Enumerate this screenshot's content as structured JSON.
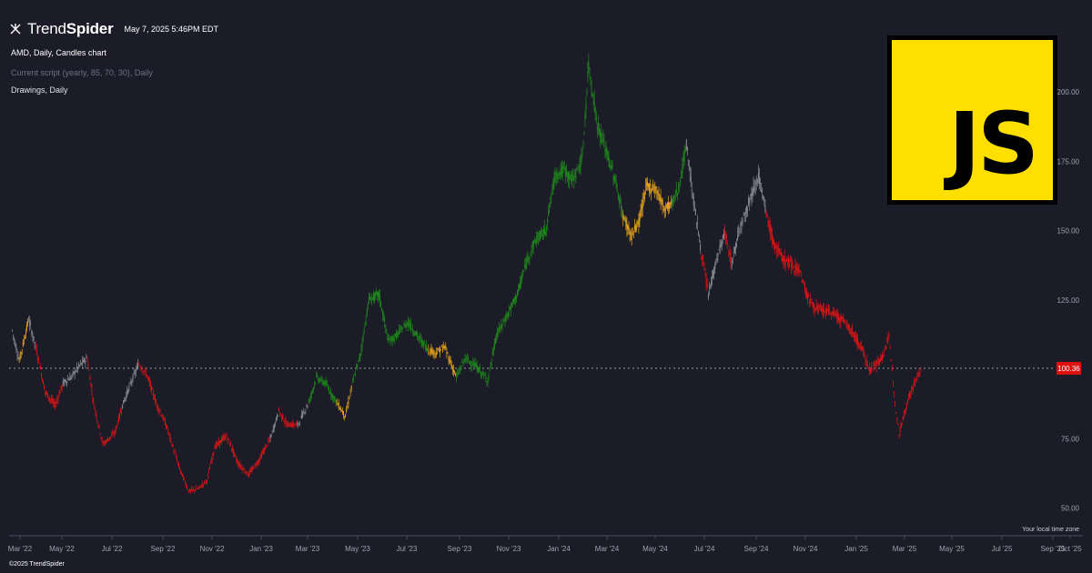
{
  "header": {
    "brand_light": "Trend",
    "brand_bold": "Spider",
    "timestamp": "May 7, 2025 5:46PM EDT"
  },
  "legend": {
    "symbol_line": "AMD, Daily, Candles chart",
    "script_line": "Current script (yearly, 85, 70, 30), Daily",
    "drawings_line": "Drawings, Daily"
  },
  "footer": {
    "copyright": "©2025 TrendSpider",
    "timezone": "Your local time zone"
  },
  "logo": {
    "text": "JS",
    "bg": "#ffdf00"
  },
  "colors": {
    "background": "#1b1c28",
    "up_trend": "#1f8a1a",
    "warning": "#e8a31c",
    "down_trend": "#e11414",
    "neutral": "#8a8c93",
    "price_tag": "#e01010"
  },
  "chart_data": {
    "type": "line",
    "title": "AMD, Daily, Candles chart",
    "ylim": [
      40,
      220
    ],
    "y_ticks": [
      {
        "value": 50,
        "label": "50.00"
      },
      {
        "value": 75,
        "label": "75.00"
      },
      {
        "value": 100,
        "label": "100.00"
      },
      {
        "value": 125,
        "label": "125.00"
      },
      {
        "value": 150,
        "label": "150.00"
      },
      {
        "value": 175,
        "label": "175.00"
      },
      {
        "value": 200,
        "label": "200.00"
      }
    ],
    "x_ticks": [
      "Mar '22",
      "May '22",
      "Jul '22",
      "Sep '22",
      "Nov '22",
      "Jan '23",
      "Mar '23",
      "May '23",
      "Jul '23",
      "Sep '23",
      "Nov '23",
      "Jan '24",
      "Mar '24",
      "May '24",
      "Jul '24",
      "Sep '24",
      "Nov '24",
      "Jan '25",
      "Mar '25",
      "May '25",
      "Jul '25",
      "Sep '25",
      "Oct '25"
    ],
    "last_price": 100.36,
    "last_price_label": "100.36",
    "price_points": [
      {
        "x": "2022-03-01",
        "y": 114,
        "c": "neutral"
      },
      {
        "x": "2022-03-10",
        "y": 103,
        "c": "neutral"
      },
      {
        "x": "2022-03-22",
        "y": 118,
        "c": "warning"
      },
      {
        "x": "2022-03-31",
        "y": 108,
        "c": "neutral"
      },
      {
        "x": "2022-04-12",
        "y": 92,
        "c": "down"
      },
      {
        "x": "2022-04-25",
        "y": 87,
        "c": "down"
      },
      {
        "x": "2022-05-05",
        "y": 95,
        "c": "down"
      },
      {
        "x": "2022-05-15",
        "y": 97,
        "c": "neutral"
      },
      {
        "x": "2022-05-25",
        "y": 101,
        "c": "neutral"
      },
      {
        "x": "2022-06-05",
        "y": 104,
        "c": "neutral"
      },
      {
        "x": "2022-06-13",
        "y": 88,
        "c": "down"
      },
      {
        "x": "2022-06-25",
        "y": 73,
        "c": "down"
      },
      {
        "x": "2022-07-10",
        "y": 77,
        "c": "down"
      },
      {
        "x": "2022-07-20",
        "y": 87,
        "c": "down"
      },
      {
        "x": "2022-08-01",
        "y": 96,
        "c": "neutral"
      },
      {
        "x": "2022-08-10",
        "y": 102,
        "c": "neutral"
      },
      {
        "x": "2022-08-20",
        "y": 98,
        "c": "down"
      },
      {
        "x": "2022-09-01",
        "y": 88,
        "c": "down"
      },
      {
        "x": "2022-09-15",
        "y": 79,
        "c": "down"
      },
      {
        "x": "2022-09-30",
        "y": 65,
        "c": "down"
      },
      {
        "x": "2022-10-13",
        "y": 56,
        "c": "down"
      },
      {
        "x": "2022-10-25",
        "y": 57,
        "c": "down"
      },
      {
        "x": "2022-11-05",
        "y": 60,
        "c": "down"
      },
      {
        "x": "2022-11-15",
        "y": 72,
        "c": "down"
      },
      {
        "x": "2022-11-30",
        "y": 76,
        "c": "down"
      },
      {
        "x": "2022-12-15",
        "y": 66,
        "c": "down"
      },
      {
        "x": "2022-12-28",
        "y": 62,
        "c": "down"
      },
      {
        "x": "2023-01-10",
        "y": 67,
        "c": "down"
      },
      {
        "x": "2023-01-25",
        "y": 75,
        "c": "down"
      },
      {
        "x": "2023-02-05",
        "y": 85,
        "c": "neutral"
      },
      {
        "x": "2023-02-15",
        "y": 80,
        "c": "down"
      },
      {
        "x": "2023-03-01",
        "y": 80,
        "c": "down"
      },
      {
        "x": "2023-03-15",
        "y": 88,
        "c": "neutral"
      },
      {
        "x": "2023-03-25",
        "y": 97,
        "c": "up"
      },
      {
        "x": "2023-04-05",
        "y": 95,
        "c": "up"
      },
      {
        "x": "2023-04-20",
        "y": 88,
        "c": "up"
      },
      {
        "x": "2023-05-01",
        "y": 83,
        "c": "warning"
      },
      {
        "x": "2023-05-10",
        "y": 95,
        "c": "warning"
      },
      {
        "x": "2023-05-20",
        "y": 105,
        "c": "up"
      },
      {
        "x": "2023-05-31",
        "y": 125,
        "c": "up"
      },
      {
        "x": "2023-06-13",
        "y": 127,
        "c": "up"
      },
      {
        "x": "2023-06-25",
        "y": 110,
        "c": "up"
      },
      {
        "x": "2023-07-05",
        "y": 112,
        "c": "up"
      },
      {
        "x": "2023-07-20",
        "y": 117,
        "c": "up"
      },
      {
        "x": "2023-08-01",
        "y": 112,
        "c": "up"
      },
      {
        "x": "2023-08-15",
        "y": 107,
        "c": "up"
      },
      {
        "x": "2023-08-25",
        "y": 106,
        "c": "warning"
      },
      {
        "x": "2023-09-05",
        "y": 108,
        "c": "warning"
      },
      {
        "x": "2023-09-20",
        "y": 97,
        "c": "warning"
      },
      {
        "x": "2023-10-01",
        "y": 104,
        "c": "up"
      },
      {
        "x": "2023-10-15",
        "y": 101,
        "c": "up"
      },
      {
        "x": "2023-10-30",
        "y": 96,
        "c": "up"
      },
      {
        "x": "2023-11-10",
        "y": 112,
        "c": "up"
      },
      {
        "x": "2023-11-25",
        "y": 120,
        "c": "up"
      },
      {
        "x": "2023-12-08",
        "y": 128,
        "c": "up"
      },
      {
        "x": "2023-12-20",
        "y": 140,
        "c": "up"
      },
      {
        "x": "2023-12-31",
        "y": 147,
        "c": "up"
      },
      {
        "x": "2024-01-12",
        "y": 150,
        "c": "up"
      },
      {
        "x": "2024-01-24",
        "y": 170,
        "c": "up"
      },
      {
        "x": "2024-02-05",
        "y": 172,
        "c": "up"
      },
      {
        "x": "2024-02-15",
        "y": 168,
        "c": "up"
      },
      {
        "x": "2024-02-28",
        "y": 176,
        "c": "up"
      },
      {
        "x": "2024-03-07",
        "y": 210,
        "c": "up"
      },
      {
        "x": "2024-03-18",
        "y": 188,
        "c": "up"
      },
      {
        "x": "2024-03-28",
        "y": 180,
        "c": "up"
      },
      {
        "x": "2024-04-10",
        "y": 168,
        "c": "up"
      },
      {
        "x": "2024-04-20",
        "y": 155,
        "c": "up"
      },
      {
        "x": "2024-05-01",
        "y": 148,
        "c": "warning"
      },
      {
        "x": "2024-05-10",
        "y": 153,
        "c": "warning"
      },
      {
        "x": "2024-05-20",
        "y": 166,
        "c": "warning"
      },
      {
        "x": "2024-06-01",
        "y": 165,
        "c": "warning"
      },
      {
        "x": "2024-06-12",
        "y": 158,
        "c": "warning"
      },
      {
        "x": "2024-06-22",
        "y": 160,
        "c": "warning"
      },
      {
        "x": "2024-07-01",
        "y": 166,
        "c": "up"
      },
      {
        "x": "2024-07-10",
        "y": 181,
        "c": "up"
      },
      {
        "x": "2024-07-18",
        "y": 163,
        "c": "neutral"
      },
      {
        "x": "2024-07-29",
        "y": 142,
        "c": "neutral"
      },
      {
        "x": "2024-08-07",
        "y": 127,
        "c": "down"
      },
      {
        "x": "2024-08-18",
        "y": 140,
        "c": "neutral"
      },
      {
        "x": "2024-08-28",
        "y": 149,
        "c": "neutral"
      },
      {
        "x": "2024-09-06",
        "y": 138,
        "c": "down"
      },
      {
        "x": "2024-09-16",
        "y": 151,
        "c": "neutral"
      },
      {
        "x": "2024-09-30",
        "y": 162,
        "c": "neutral"
      },
      {
        "x": "2024-10-10",
        "y": 170,
        "c": "neutral"
      },
      {
        "x": "2024-10-20",
        "y": 156,
        "c": "neutral"
      },
      {
        "x": "2024-10-30",
        "y": 145,
        "c": "down"
      },
      {
        "x": "2024-11-10",
        "y": 140,
        "c": "down"
      },
      {
        "x": "2024-11-20",
        "y": 138,
        "c": "down"
      },
      {
        "x": "2024-12-01",
        "y": 136,
        "c": "down"
      },
      {
        "x": "2024-12-12",
        "y": 126,
        "c": "down"
      },
      {
        "x": "2024-12-22",
        "y": 122,
        "c": "down"
      },
      {
        "x": "2025-01-03",
        "y": 121,
        "c": "down"
      },
      {
        "x": "2025-01-15",
        "y": 120,
        "c": "down"
      },
      {
        "x": "2025-01-28",
        "y": 117,
        "c": "down"
      },
      {
        "x": "2025-02-08",
        "y": 113,
        "c": "down"
      },
      {
        "x": "2025-02-20",
        "y": 107,
        "c": "down"
      },
      {
        "x": "2025-03-01",
        "y": 100,
        "c": "down"
      },
      {
        "x": "2025-03-15",
        "y": 103,
        "c": "down"
      },
      {
        "x": "2025-03-26",
        "y": 111,
        "c": "down"
      },
      {
        "x": "2025-04-04",
        "y": 85,
        "c": "down"
      },
      {
        "x": "2025-04-08",
        "y": 77,
        "c": "down"
      },
      {
        "x": "2025-04-20",
        "y": 90,
        "c": "down"
      },
      {
        "x": "2025-05-01",
        "y": 97,
        "c": "down"
      },
      {
        "x": "2025-05-07",
        "y": 100.36,
        "c": "down"
      }
    ]
  }
}
